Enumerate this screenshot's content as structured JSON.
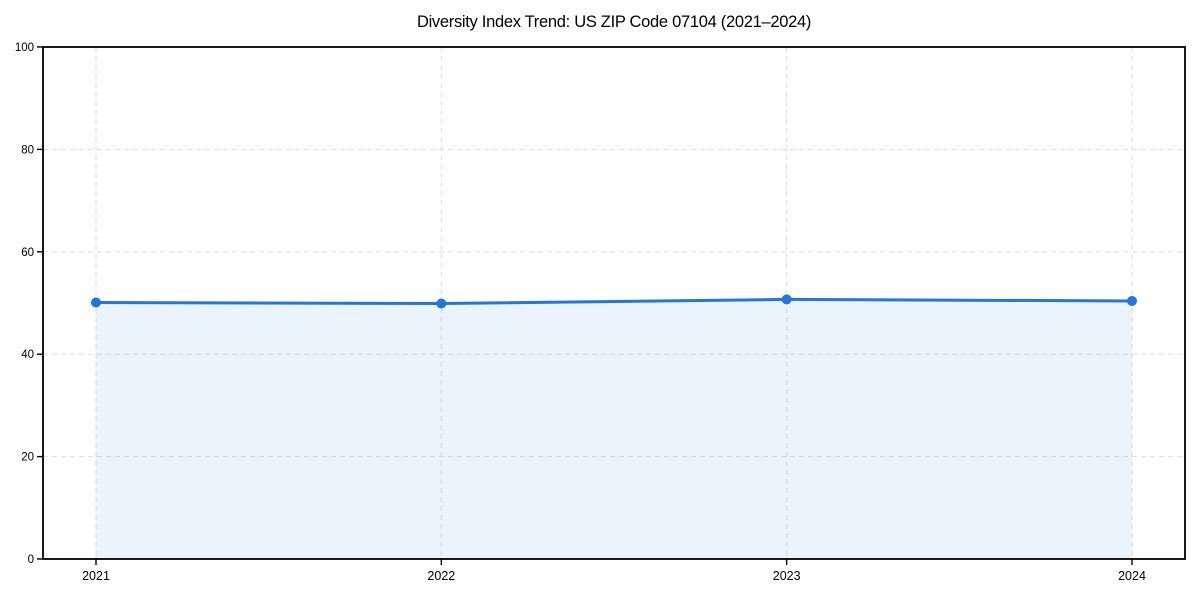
{
  "chart": {
    "title": "Diversity Index Trend: US ZIP Code 07104 (2021–2024)"
  },
  "chart_data": {
    "type": "area",
    "title": "Diversity Index Trend: US ZIP Code 07104 (2021–2024)",
    "x": [
      2021,
      2022,
      2023,
      2024
    ],
    "x_tick_labels": [
      "2021",
      "2022",
      "2023",
      "2024"
    ],
    "series": [
      {
        "name": "Diversity Index",
        "values": [
          50.1,
          49.9,
          50.7,
          50.4
        ]
      }
    ],
    "xlabel": "",
    "ylabel": "",
    "ylim": [
      0,
      100
    ],
    "y_ticks": [
      0,
      20,
      40,
      60,
      80,
      100
    ],
    "grid": true,
    "grid_style": "dashed",
    "legend_position": "none",
    "marker": "circle",
    "colors": {
      "line": "#2575e0",
      "marker": "#2575e0",
      "fill_rgba": "rgba(37,117,224,0.09)",
      "grid": "#e0e0e0",
      "spine": "#000000",
      "text": "#000000",
      "background": "#ffffff"
    }
  }
}
